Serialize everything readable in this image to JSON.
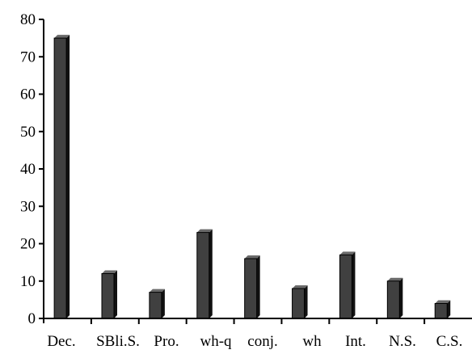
{
  "chart_data": {
    "type": "bar",
    "categories": [
      "Dec.",
      "SBli.S.",
      "Pro.",
      "wh-q",
      "conj.",
      "wh",
      "Int.",
      "N.S.",
      "C.S."
    ],
    "values": [
      75,
      12,
      7,
      23,
      16,
      8,
      17,
      10,
      4
    ],
    "title": "",
    "xlabel": "",
    "ylabel": "",
    "ylim": [
      0,
      80
    ],
    "yticks": [
      "0",
      "10",
      "20",
      "30",
      "40",
      "50",
      "60",
      "70",
      "80"
    ],
    "grid": false,
    "legend": "none",
    "bar_style": "3d",
    "colors": {
      "bar_front": "#404040",
      "bar_side": "#111111",
      "bar_top": "#6a6a6a",
      "axis": "#000000"
    }
  }
}
